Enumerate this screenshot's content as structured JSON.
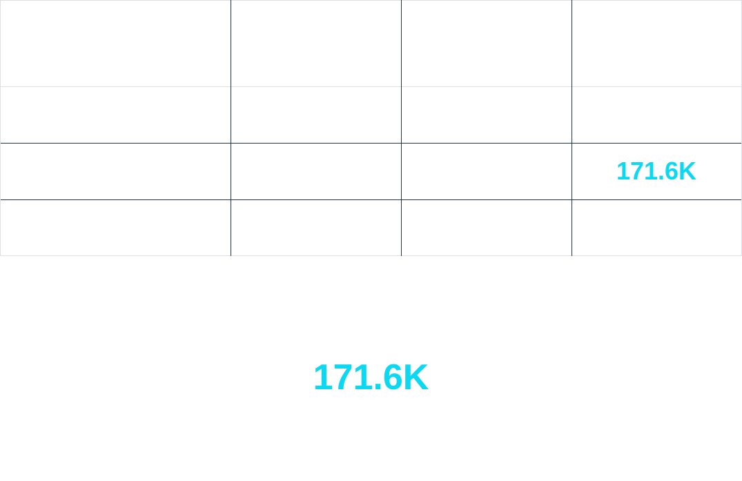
{
  "table": {
    "highlight_cell": "171.6K"
  },
  "summary": {
    "value": "171.6K"
  }
}
